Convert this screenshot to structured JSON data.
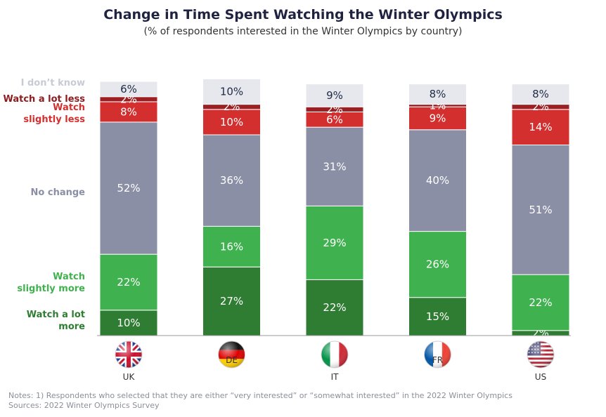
{
  "chart_data": {
    "type": "bar",
    "stacked": true,
    "percent_labels": true,
    "title": "Change in Time Spent Watching the Winter Olympics",
    "subtitle": "(% of respondents interested in the Winter Olympics by country)",
    "categories": [
      "UK",
      "DE",
      "IT",
      "FR",
      "US"
    ],
    "series": [
      {
        "name": "Watch a lot more",
        "color": "#2e7d32",
        "values": [
          10,
          27,
          22,
          15,
          2
        ]
      },
      {
        "name": "Watch slightly more",
        "color": "#3fb24f",
        "values": [
          22,
          16,
          29,
          26,
          22
        ]
      },
      {
        "name": "No change",
        "color": "#8a8fa6",
        "values": [
          52,
          36,
          31,
          40,
          51
        ]
      },
      {
        "name": "Watch slightly less",
        "color": "#d32f2f",
        "values": [
          8,
          10,
          6,
          9,
          14
        ]
      },
      {
        "name": "Watch a lot less",
        "color": "#9c1f24",
        "values": [
          2,
          2,
          2,
          1,
          2
        ]
      },
      {
        "name": "I don’t know",
        "color": "#e6e8ed",
        "values": [
          6,
          10,
          9,
          8,
          8
        ]
      }
    ],
    "ylim": [
      0,
      100
    ],
    "grid": false,
    "legend_position": "left"
  },
  "notes": {
    "line1": "Notes: 1) Respondents who selected that they are either “very interested” or “somewhat interested” in the 2022 Winter Olympics",
    "line2": "Sources: 2022 Winter Olympics Survey"
  },
  "flag_icons": [
    "uk-flag-icon",
    "germany-flag-icon",
    "italy-flag-icon",
    "france-flag-icon",
    "us-flag-icon"
  ]
}
